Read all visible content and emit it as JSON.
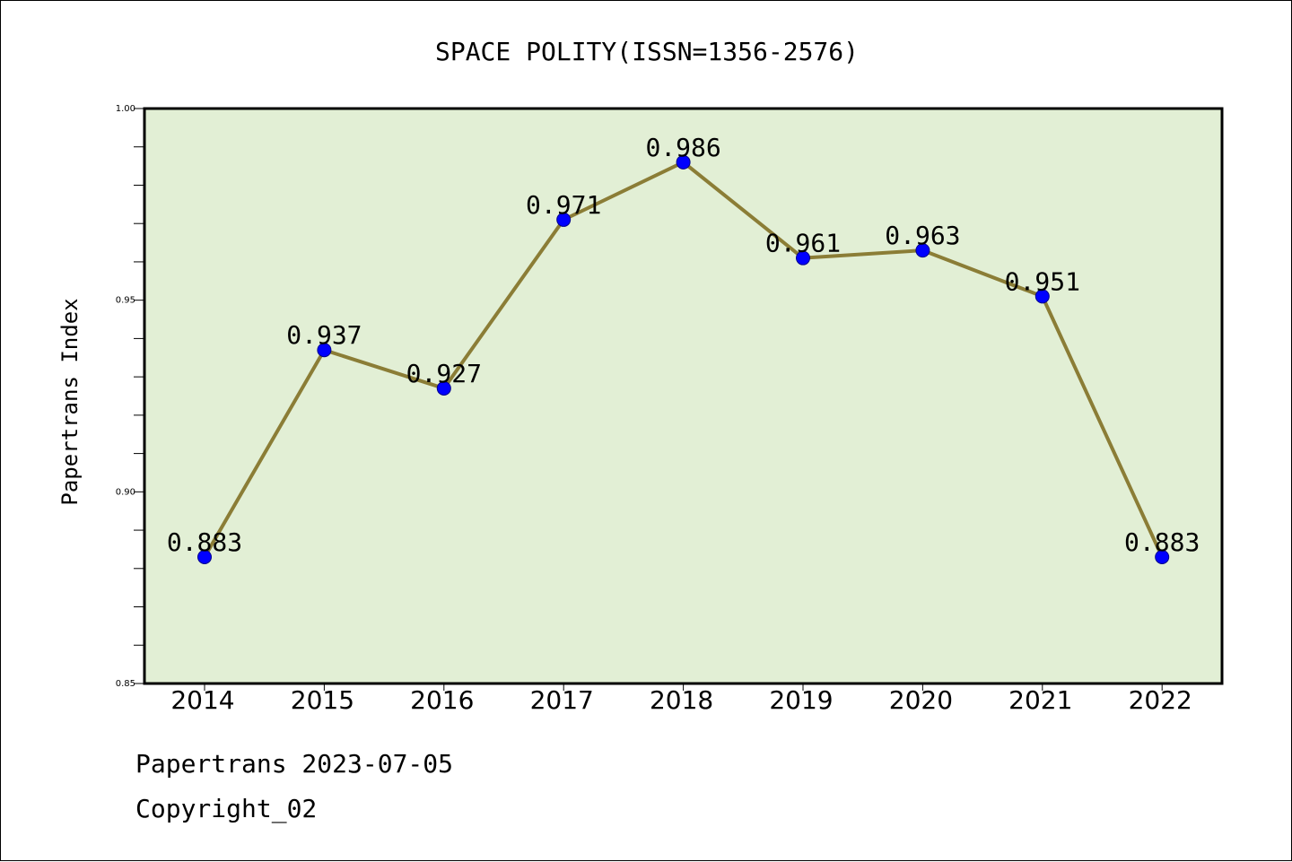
{
  "chart_data": {
    "type": "line",
    "title": "SPACE POLITY(ISSN=1356-2576)",
    "xlabel": "",
    "ylabel": "Papertrans Index",
    "categories": [
      "2014",
      "2015",
      "2016",
      "2017",
      "2018",
      "2019",
      "2020",
      "2021",
      "2022"
    ],
    "series": [
      {
        "values": [
          0.883,
          0.937,
          0.927,
          0.971,
          0.986,
          0.961,
          0.963,
          0.951,
          0.883
        ],
        "data_labels": [
          "0.883",
          "0.937",
          "0.927",
          "0.971",
          "0.986",
          "0.961",
          "0.963",
          "0.951",
          "0.883"
        ]
      }
    ],
    "ylim": [
      0.85,
      1.0
    ],
    "y_ticks": [
      "0.85",
      "0.90",
      "0.95",
      "1.00"
    ],
    "y_tick_values": [
      0.85,
      0.9,
      0.95,
      1.0
    ],
    "y_minor_step": 0.01,
    "grid": false,
    "legend": "none",
    "colors": {
      "plot_background": "#e2efd5",
      "line": "#8b7d36",
      "marker": "#0000ff",
      "marker_edge": "#00008b",
      "axes": "#000000"
    }
  },
  "footer": {
    "line1": "Papertrans 2023-07-05",
    "line2": "Copyright_02"
  }
}
